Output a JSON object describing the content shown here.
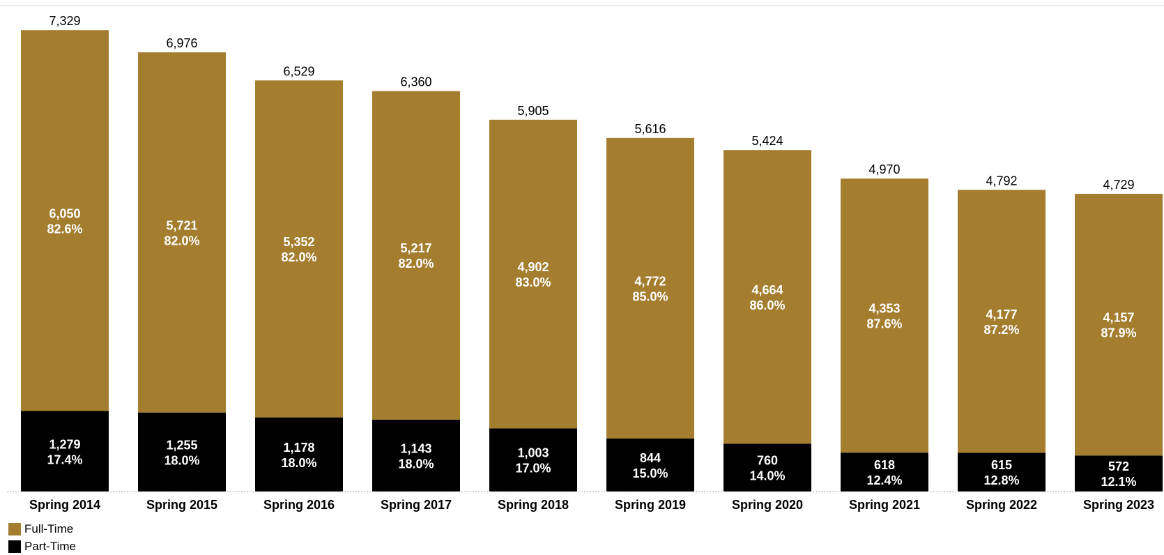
{
  "chart_data": {
    "type": "bar",
    "stacked": true,
    "title": "",
    "xlabel": "",
    "ylabel": "",
    "ylim": [
      0,
      7800
    ],
    "grid": false,
    "legend_position": "bottom-left",
    "categories": [
      "Spring 2014",
      "Spring 2015",
      "Spring 2016",
      "Spring 2017",
      "Spring 2018",
      "Spring 2019",
      "Spring 2020",
      "Spring 2021",
      "Spring 2022",
      "Spring 2023"
    ],
    "totals": [
      "7,329",
      "6,976",
      "6,529",
      "6,360",
      "5,905",
      "5,616",
      "5,424",
      "4,970",
      "4,792",
      "4,729"
    ],
    "series": [
      {
        "name": "Part-Time",
        "color": "#000000",
        "values": [
          1279,
          1255,
          1178,
          1143,
          1003,
          844,
          760,
          618,
          615,
          572
        ],
        "value_labels": [
          "1,279",
          "1,255",
          "1,178",
          "1,143",
          "1,003",
          "844",
          "760",
          "618",
          "615",
          "572"
        ],
        "percent_labels": [
          "17.4%",
          "18.0%",
          "18.0%",
          "18.0%",
          "17.0%",
          "15.0%",
          "14.0%",
          "12.4%",
          "12.8%",
          "12.1%"
        ]
      },
      {
        "name": "Full-Time",
        "color": "#A47D2E",
        "values": [
          6050,
          5721,
          5352,
          5217,
          4902,
          4772,
          4664,
          4353,
          4177,
          4157
        ],
        "value_labels": [
          "6,050",
          "5,721",
          "5,352",
          "5,217",
          "4,902",
          "4,772",
          "4,664",
          "4,353",
          "4,177",
          "4,157"
        ],
        "percent_labels": [
          "82.6%",
          "82.0%",
          "82.0%",
          "82.0%",
          "83.0%",
          "85.0%",
          "86.0%",
          "87.6%",
          "87.2%",
          "87.9%"
        ]
      }
    ]
  },
  "legend": {
    "items": [
      {
        "label": "Full-Time",
        "color": "#A47D2E"
      },
      {
        "label": "Part-Time",
        "color": "#000000"
      }
    ]
  }
}
